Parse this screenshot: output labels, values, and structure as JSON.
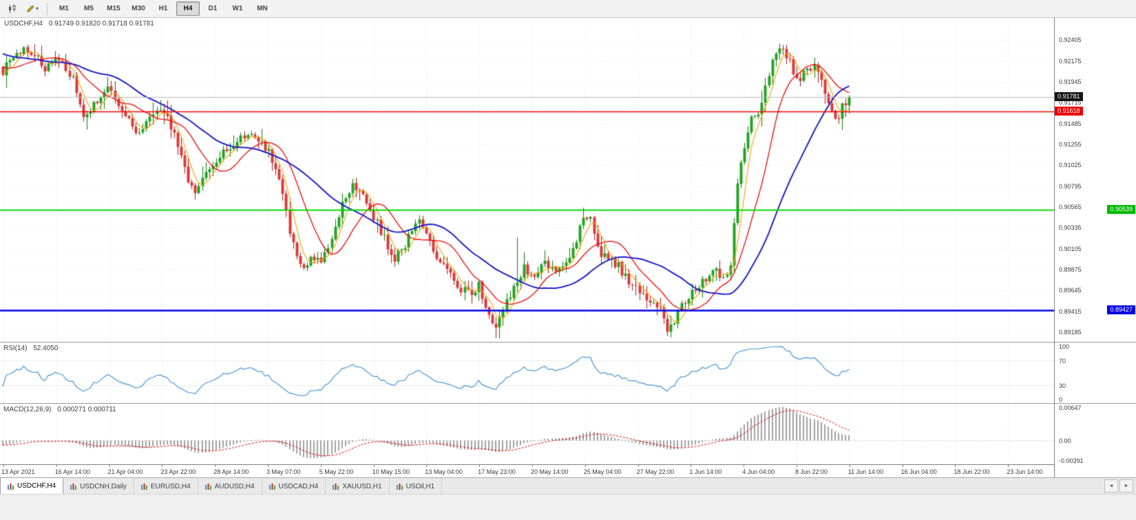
{
  "toolbar": {
    "icons": [
      {
        "name": "chart-type-icon"
      },
      {
        "name": "drawing-tool-icon"
      },
      {
        "name": "dropdown-arrow-icon",
        "glyph": "▾"
      }
    ],
    "timeframes": [
      {
        "label": "M1"
      },
      {
        "label": "M5"
      },
      {
        "label": "M15"
      },
      {
        "label": "M30"
      },
      {
        "label": "H1"
      },
      {
        "label": "H4",
        "active": true
      },
      {
        "label": "D1"
      },
      {
        "label": "W1"
      },
      {
        "label": "MN"
      }
    ]
  },
  "chart": {
    "symbol_period": "USDCHF,H4",
    "ohlc_text": "0.91749 0.91820 0.91718 0.91781"
  },
  "indicators": {
    "rsi": {
      "label": "RSI(14)",
      "value": "52.4050"
    },
    "macd": {
      "label": "MACD(12,26,9)",
      "values": "0.000271 0.000711"
    }
  },
  "price_scale": {
    "badges": {
      "current": "0.91781",
      "line_red": "0.91618",
      "line_green": "0.90539",
      "line_blue": "0.89427"
    }
  },
  "tabs": {
    "items": [
      {
        "label": "USDCHF,H4",
        "active": true
      },
      {
        "label": "USDCNH,Daily"
      },
      {
        "label": "EURUSD,H4"
      },
      {
        "label": "AUDUSD,H4"
      },
      {
        "label": "USDCAD,H4"
      },
      {
        "label": "XAUUSD,H1"
      },
      {
        "label": "USOil,H1"
      }
    ],
    "scroll_left": "◄",
    "scroll_right": "►"
  },
  "chart_data": {
    "type": "candlestick",
    "symbol": "USDCHF",
    "timeframe": "H4",
    "title": "USDCHF,H4",
    "ohlc_current": {
      "open": 0.91749,
      "high": 0.9182,
      "low": 0.91718,
      "close": 0.91781
    },
    "price_axis": {
      "min": 0.8908,
      "max": 0.9265,
      "ticks": [
        0.92405,
        0.92175,
        0.91945,
        0.91715,
        0.91485,
        0.91255,
        0.91025,
        0.90795,
        0.90565,
        0.90335,
        0.90105,
        0.89875,
        0.89645,
        0.89415,
        0.89185
      ],
      "labels": [
        "0.92405",
        "0.92175",
        "0.91945",
        "0.91715",
        "0.91485",
        "0.91255",
        "0.91025",
        "0.90795",
        "0.90565",
        "0.90335",
        "0.90105",
        "0.89875",
        "0.89645",
        "0.89415",
        "0.89185"
      ]
    },
    "time_labels": [
      "13 Apr 2021",
      "16 Apr 14:00",
      "21 Apr 04:00",
      "23 Apr 22:00",
      "28 Apr 14:00",
      "3 May 07:00",
      "5 May 22:00",
      "10 May 15:00",
      "13 May 04:00",
      "17 May 23:00",
      "20 May 14:00",
      "25 May 04:00",
      "27 May 22:00",
      "1 Jun 14:00",
      "4 Jun 04:00",
      "8 Jun 22:00",
      "11 Jun 14:00",
      "16 Jun 04:00",
      "18 Jun 22:00",
      "23 Jun 14:00"
    ],
    "bars_count": 243,
    "close_path_anchors": [
      [
        0,
        0.9207
      ],
      [
        3,
        0.9222
      ],
      [
        7,
        0.9232
      ],
      [
        12,
        0.921
      ],
      [
        16,
        0.9221
      ],
      [
        20,
        0.9196
      ],
      [
        23,
        0.9152
      ],
      [
        26,
        0.917
      ],
      [
        30,
        0.9186
      ],
      [
        34,
        0.9161
      ],
      [
        38,
        0.914
      ],
      [
        42,
        0.9152
      ],
      [
        46,
        0.9163
      ],
      [
        49,
        0.9136
      ],
      [
        52,
        0.9096
      ],
      [
        55,
        0.9074
      ],
      [
        58,
        0.9091
      ],
      [
        62,
        0.9111
      ],
      [
        66,
        0.9126
      ],
      [
        70,
        0.9139
      ],
      [
        73,
        0.9131
      ],
      [
        76,
        0.9119
      ],
      [
        79,
        0.9086
      ],
      [
        82,
        0.9031
      ],
      [
        85,
        0.899
      ],
      [
        88,
        0.9001
      ],
      [
        91,
        0.8994
      ],
      [
        94,
        0.9021
      ],
      [
        97,
        0.9061
      ],
      [
        100,
        0.9083
      ],
      [
        103,
        0.9071
      ],
      [
        106,
        0.9046
      ],
      [
        109,
        0.9021
      ],
      [
        112,
        0.9001
      ],
      [
        115,
        0.9013
      ],
      [
        118,
        0.9041
      ],
      [
        121,
        0.9033
      ],
      [
        124,
        0.9001
      ],
      [
        127,
        0.8986
      ],
      [
        130,
        0.8971
      ],
      [
        133,
        0.8961
      ],
      [
        136,
        0.8969
      ],
      [
        139,
        0.8941
      ],
      [
        141,
        0.8926
      ],
      [
        143,
        0.8946
      ],
      [
        146,
        0.8966
      ],
      [
        149,
        0.8991
      ],
      [
        152,
        0.8981
      ],
      [
        155,
        0.8993
      ],
      [
        158,
        0.8986
      ],
      [
        161,
        0.8999
      ],
      [
        164,
        0.9016
      ],
      [
        166,
        0.9049
      ],
      [
        168,
        0.9041
      ],
      [
        170,
        0.9011
      ],
      [
        173,
        0.8996
      ],
      [
        176,
        0.8991
      ],
      [
        179,
        0.8976
      ],
      [
        182,
        0.8961
      ],
      [
        185,
        0.8951
      ],
      [
        188,
        0.8946
      ],
      [
        190,
        0.8921
      ],
      [
        192,
        0.8931
      ],
      [
        194,
        0.8946
      ],
      [
        197,
        0.8961
      ],
      [
        200,
        0.8976
      ],
      [
        203,
        0.8986
      ],
      [
        206,
        0.8981
      ],
      [
        208,
        0.8992
      ],
      [
        210,
        0.9081
      ],
      [
        212,
        0.9126
      ],
      [
        214,
        0.9151
      ],
      [
        216,
        0.9161
      ],
      [
        218,
        0.9186
      ],
      [
        220,
        0.9216
      ],
      [
        222,
        0.9231
      ],
      [
        224,
        0.9222
      ],
      [
        226,
        0.9207
      ],
      [
        228,
        0.9196
      ],
      [
        230,
        0.9208
      ],
      [
        232,
        0.9212
      ],
      [
        234,
        0.9196
      ],
      [
        236,
        0.9172
      ],
      [
        238,
        0.9152
      ],
      [
        240,
        0.9166
      ],
      [
        242,
        0.91781
      ]
    ],
    "wick_spikes": [
      {
        "bar": 147,
        "high": 0.9023
      },
      {
        "bar": 191,
        "low": 0.8913
      }
    ],
    "horizontal_lines": [
      {
        "price": 0.91618,
        "color": "#F40000",
        "label": "0.91618"
      },
      {
        "price": 0.90539,
        "color": "#00D800",
        "label": "0.90539"
      },
      {
        "price": 0.89427,
        "color": "#0000F0",
        "label": "0.89427"
      }
    ],
    "current_price_line": {
      "price": 0.91781,
      "color": "#B8B8B8",
      "label": "0.91781"
    },
    "moving_averages": [
      {
        "name": "fast",
        "period": 5,
        "type": "sma",
        "color": "#F5A000"
      },
      {
        "name": "medium",
        "period": 13,
        "type": "sma",
        "color": "#F40000"
      },
      {
        "name": "slow",
        "period": 30,
        "type": "sma",
        "color": "#2020CC"
      }
    ],
    "candle_colors": {
      "up": "#22A422",
      "up_border": "#0B7A0B",
      "down": "#DD3A3A",
      "down_border": "#A51818"
    },
    "sub_panels": [
      {
        "type": "rsi",
        "period": 14,
        "last_value": 52.405,
        "range": [
          0,
          100
        ],
        "level_lines": [
          70,
          30
        ],
        "axis_tick_values": [
          100,
          70,
          30,
          0
        ],
        "axis_tick_labels": [
          "100",
          "70",
          "30",
          "0"
        ],
        "line_color": "#4394D8"
      },
      {
        "type": "macd",
        "fast": 12,
        "slow": 26,
        "signal_period": 9,
        "last_main": 0.000271,
        "last_signal": 0.000711,
        "axis_tick_values": [
          0.00647,
          0,
          -0.00391
        ],
        "axis_tick_labels": [
          "0.00647",
          "0.00",
          "-0.00391"
        ],
        "hist_color": "#A0A0A0",
        "signal_color": "#E00000"
      }
    ]
  }
}
